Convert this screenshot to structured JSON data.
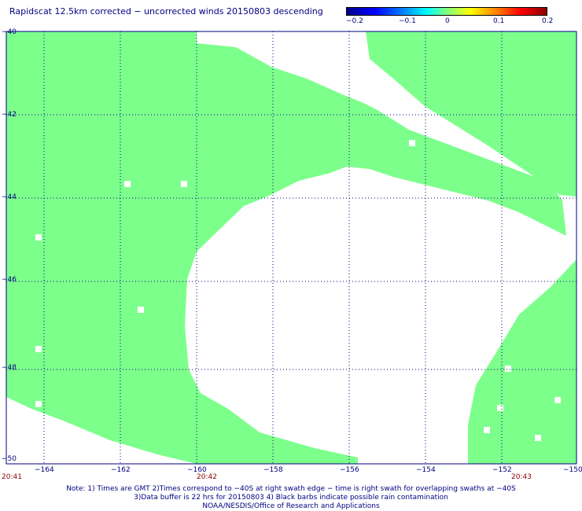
{
  "title": "Rapidscat 12.5km corrected − uncorrected winds 20150803 descending",
  "colorbar": {
    "labels": [
      "−0.2",
      "−0.1",
      "0",
      "0.1",
      "0.2"
    ],
    "range": [
      -0.2,
      0.2
    ],
    "colors": [
      "#00008b",
      "#0000ff",
      "#00ffff",
      "#80ff80",
      "#ffff00",
      "#ff0000",
      "#8b0000"
    ]
  },
  "map": {
    "lat_labels": [
      "−40",
      "−42",
      "−44",
      "−46",
      "−48",
      "−50"
    ],
    "lon_labels": [
      "−164",
      "−162",
      "−160",
      "−158",
      "−156",
      "−154",
      "−152",
      "−150"
    ],
    "lat_range": [
      -50,
      -40
    ],
    "lon_range": [
      -165,
      -150
    ],
    "swath_color": "#7dff8c",
    "grid_color": "#000080"
  },
  "times": [
    "20:41",
    "20:42",
    "20:43"
  ],
  "notes": [
    "Note: 1) Times are GMT 2)Times correspond to −40S at right swath edge − time is right swath for overlapping swaths at −40S",
    "3)Data buffer is 22 hrs for 20150803 4) Black barbs indicate possible rain contamination",
    "NOAA/NESDIS/Office of Research and Applications"
  ]
}
